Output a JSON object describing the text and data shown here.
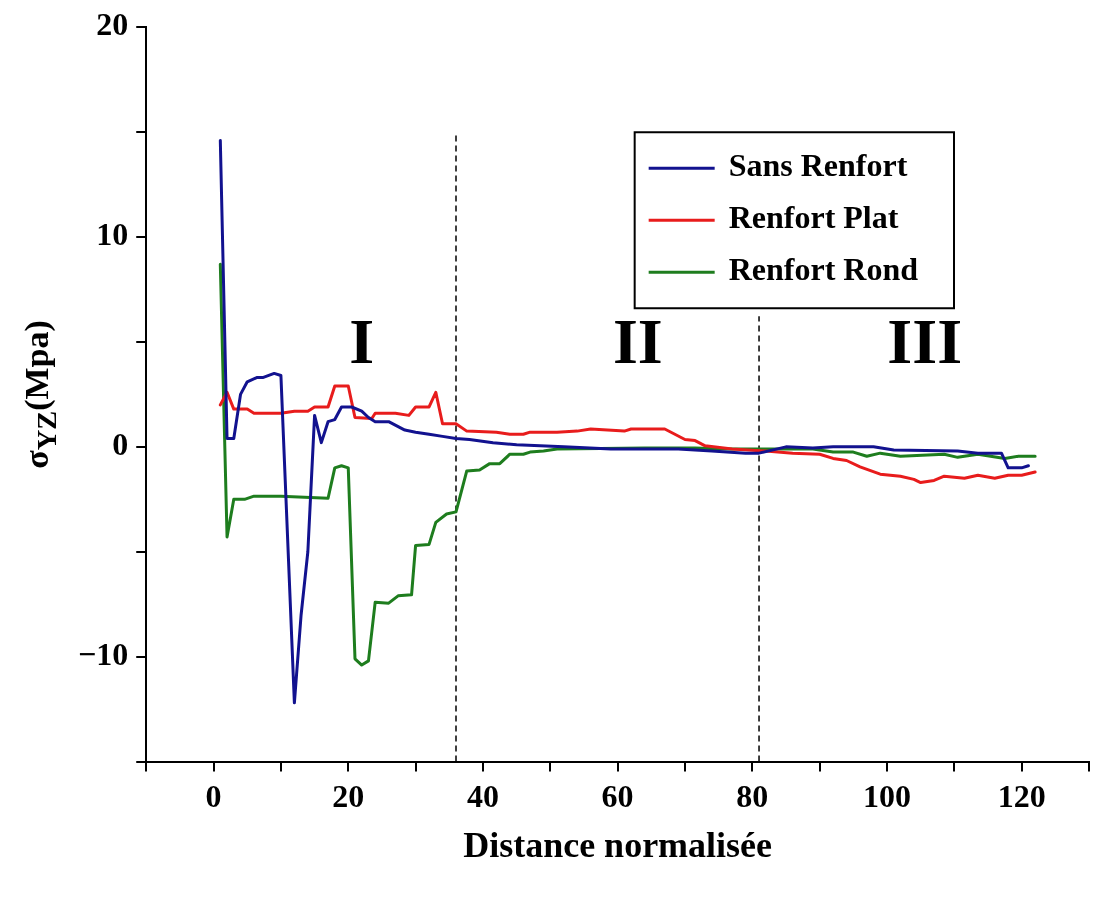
{
  "chart_data": {
    "type": "line",
    "xlabel": "Distance normalisée",
    "ylabel": "σ$_{YZ}$(Mpa)",
    "xlim": [
      -10,
      130
    ],
    "ylim": [
      -15,
      20
    ],
    "xticks": [
      {
        "value": -10,
        "label": null
      },
      0,
      {
        "value": 10,
        "label": null
      },
      20,
      {
        "value": 30,
        "label": null
      },
      40,
      {
        "value": 50,
        "label": null
      },
      60,
      {
        "value": 70,
        "label": null
      },
      80,
      {
        "value": 90,
        "label": null
      },
      100,
      {
        "value": 110,
        "label": null
      },
      120,
      {
        "value": 130,
        "label": null
      }
    ],
    "yticks": [
      {
        "value": -15,
        "label": null
      },
      {
        "value": -10,
        "label": "−10"
      },
      {
        "value": -5,
        "label": null
      },
      0,
      {
        "value": 5,
        "label": null
      },
      10,
      {
        "value": 15,
        "label": null
      },
      20
    ],
    "grid": false,
    "legend": "top right",
    "marker": "none",
    "line_style": "solid",
    "series": [
      {
        "name": "Sans Renfort",
        "color": "#12128f",
        "x": [
          1,
          2,
          3,
          4,
          5,
          6.4,
          7.3,
          9,
          10,
          12,
          13,
          14,
          15,
          16,
          17,
          18,
          19,
          20.5,
          22,
          23,
          24,
          26,
          28.4,
          30,
          32,
          34,
          36,
          38,
          41.5,
          45,
          52,
          59,
          69,
          74,
          79,
          81,
          85,
          89,
          92,
          98,
          101,
          110.5,
          113.5,
          117,
          118,
          120,
          121
        ],
        "values": [
          14.6,
          0.4,
          0.4,
          2.5,
          3.1,
          3.3,
          3.3,
          3.5,
          3.4,
          -12.2,
          -8,
          -5,
          1.5,
          0.2,
          1.2,
          1.3,
          1.9,
          1.9,
          1.7,
          1.4,
          1.2,
          1.2,
          0.8,
          0.7,
          0.6,
          0.5,
          0.4,
          0.35,
          0.2,
          0.1,
          0,
          -0.1,
          -0.1,
          -0.2,
          -0.3,
          -0.3,
          0,
          -0.05,
          0,
          0,
          -0.15,
          -0.2,
          -0.3,
          -0.3,
          -1,
          -1,
          -0.9
        ]
      },
      {
        "name": "Renfort Plat",
        "color": "#e81c1c",
        "x": [
          1,
          2,
          3,
          5,
          6,
          10,
          12,
          14,
          15,
          17,
          18,
          20,
          21,
          23.5,
          24,
          27,
          29,
          30,
          32,
          33,
          34,
          36,
          37.6,
          42,
          44,
          46,
          47,
          51,
          54,
          56,
          61,
          62,
          67,
          70,
          71.5,
          73,
          77,
          82,
          86,
          90,
          92,
          94,
          96,
          99,
          102,
          104,
          105,
          107,
          108.5,
          111.5,
          113.5,
          116,
          118,
          120,
          122
        ],
        "values": [
          2,
          2.6,
          1.8,
          1.8,
          1.6,
          1.6,
          1.7,
          1.7,
          1.9,
          1.9,
          2.9,
          2.9,
          1.4,
          1.35,
          1.6,
          1.6,
          1.5,
          1.9,
          1.9,
          2.6,
          1.1,
          1.1,
          0.75,
          0.7,
          0.6,
          0.6,
          0.7,
          0.7,
          0.75,
          0.85,
          0.75,
          0.85,
          0.85,
          0.35,
          0.3,
          0.05,
          -0.1,
          -0.2,
          -0.3,
          -0.35,
          -0.55,
          -0.65,
          -0.95,
          -1.3,
          -1.4,
          -1.55,
          -1.7,
          -1.6,
          -1.4,
          -1.5,
          -1.35,
          -1.5,
          -1.35,
          -1.35,
          -1.2
        ]
      },
      {
        "name": "Renfort Rond",
        "color": "#1e7d1e",
        "x": [
          1,
          2,
          3,
          4.6,
          6,
          10,
          17,
          18,
          19,
          20,
          21,
          22,
          23,
          24,
          26,
          27.4,
          29.4,
          30,
          32,
          33,
          34.6,
          36,
          37.6,
          39.5,
          41,
          42.5,
          44,
          46,
          47,
          49,
          51,
          64,
          71.5,
          76,
          84,
          89,
          92,
          95,
          97,
          99,
          102,
          108.5,
          110.5,
          113.5,
          117.5,
          119.5,
          122
        ],
        "values": [
          8.7,
          -4.3,
          -2.5,
          -2.5,
          -2.35,
          -2.35,
          -2.45,
          -1,
          -0.9,
          -1,
          -10.1,
          -10.4,
          -10.2,
          -7.4,
          -7.45,
          -7.1,
          -7.05,
          -4.7,
          -4.65,
          -3.6,
          -3.2,
          -3.1,
          -1.15,
          -1.1,
          -0.8,
          -0.8,
          -0.35,
          -0.35,
          -0.25,
          -0.2,
          -0.1,
          -0.05,
          -0.05,
          -0.1,
          -0.1,
          -0.1,
          -0.25,
          -0.25,
          -0.45,
          -0.3,
          -0.45,
          -0.35,
          -0.5,
          -0.35,
          -0.55,
          -0.45,
          -0.45
        ]
      }
    ],
    "ref_lines": [
      {
        "axis": "x",
        "value": 36,
        "color": "#000000",
        "line_style": "dashed"
      },
      {
        "axis": "x",
        "value": 81,
        "color": "#000000",
        "line_style": "dashed"
      }
    ],
    "annotations": [
      "I",
      "II",
      "III"
    ]
  }
}
